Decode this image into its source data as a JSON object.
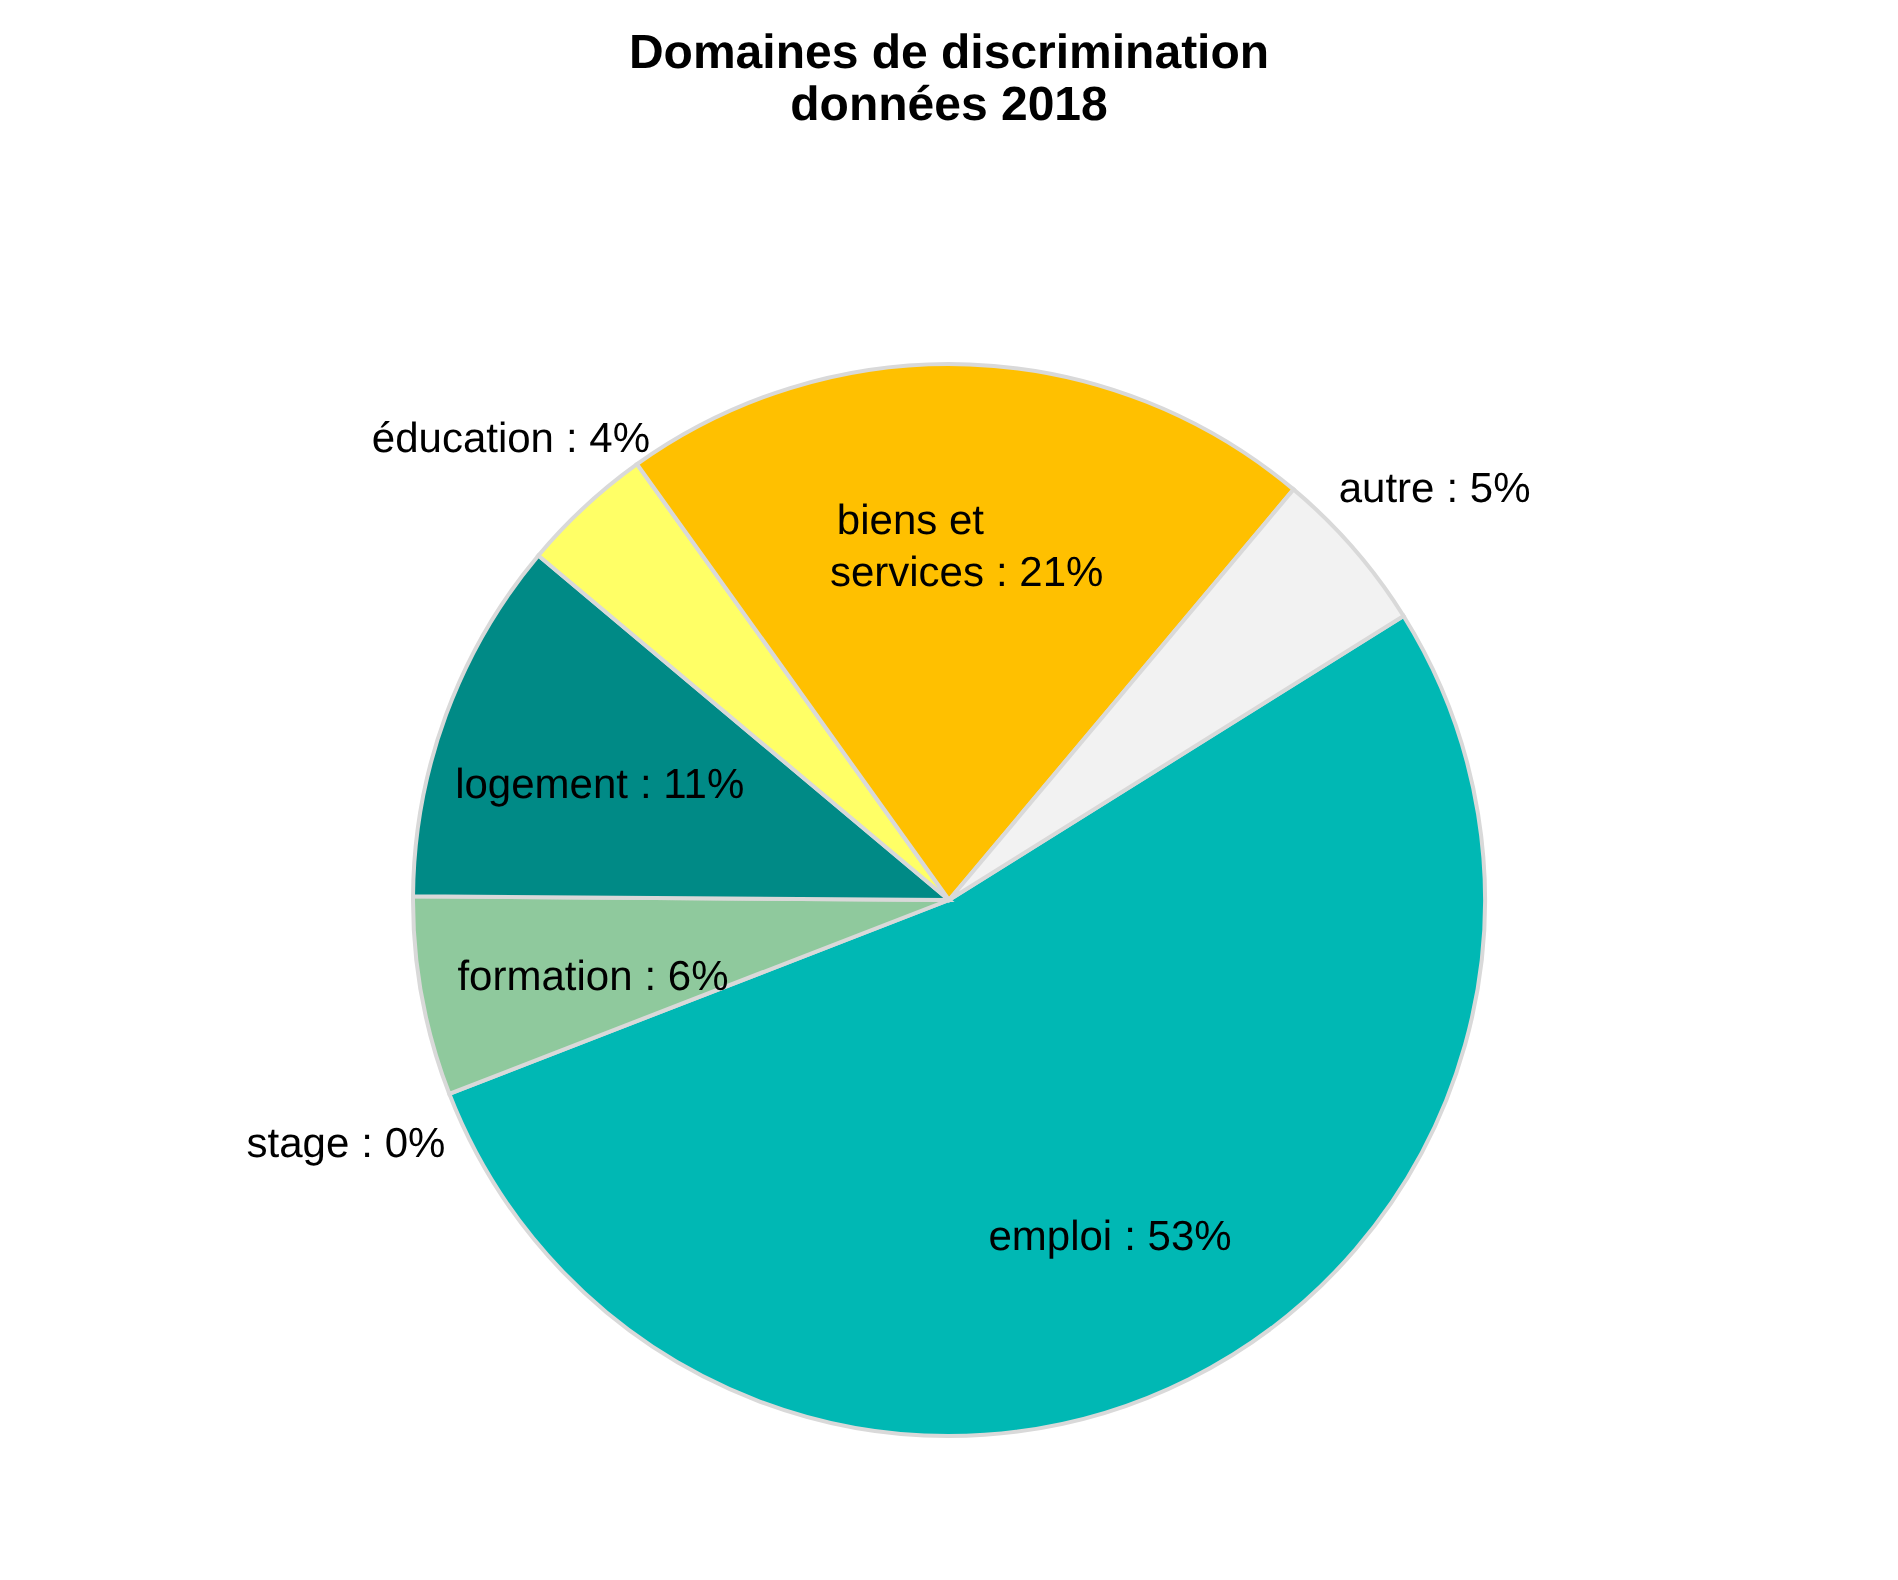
{
  "chart_data": {
    "type": "pie",
    "title": [
      "Domaines de discrimination",
      "données 2018"
    ],
    "categories": [
      "emploi",
      "stage",
      "formation",
      "logement",
      "éducation",
      "biens et services",
      "autre"
    ],
    "values": [
      53,
      0,
      6,
      11,
      4,
      21,
      5
    ],
    "colors": [
      "#00b8b4",
      "#a6a6a6",
      "#8fc99d",
      "#008a86",
      "#ffff66",
      "#ffc000",
      "#f2f2f2"
    ],
    "value_labels": [
      ": 53%",
      ": 0%",
      ": 6%",
      ": 11%",
      ": 4%",
      ": 21%",
      ": 5%"
    ],
    "legend": false
  }
}
